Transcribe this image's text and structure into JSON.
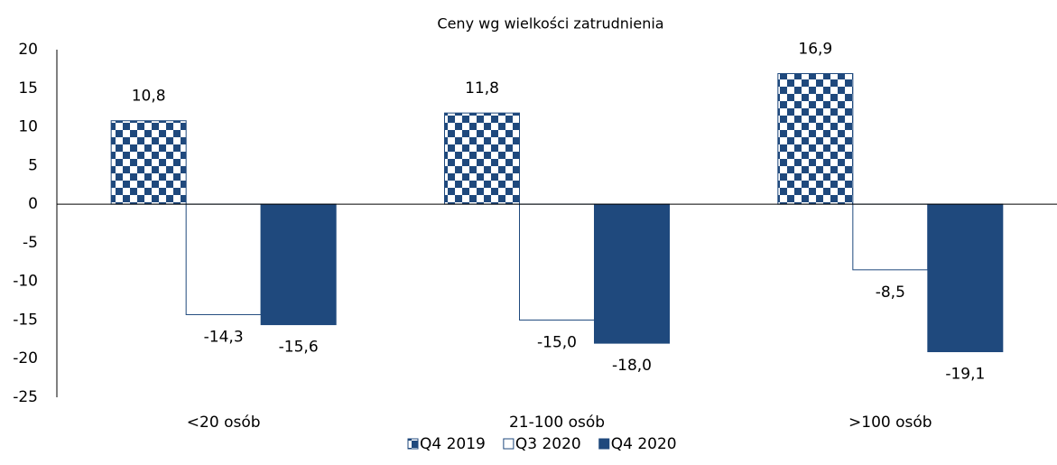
{
  "chart_data": {
    "type": "bar",
    "title": "Ceny wg wielkości zatrudnienia",
    "categories": [
      "<20 osób",
      "21-100 osób",
      ">100 osób"
    ],
    "series": [
      {
        "name": "Q4 2019",
        "color": "#1f497d",
        "pattern": "checker",
        "values": [
          10.8,
          11.8,
          16.9
        ],
        "value_labels": [
          "10,8",
          "11,8",
          "16,9"
        ]
      },
      {
        "name": "Q3 2020",
        "color": "#ffffff",
        "values": [
          -14.3,
          -15.0,
          -8.5
        ],
        "value_labels": [
          "-14,3",
          "-15,0",
          "-8,5"
        ]
      },
      {
        "name": "Q4 2020",
        "color": "#1f497d",
        "values": [
          -15.6,
          -18.0,
          -19.1
        ],
        "value_labels": [
          "-15,6",
          "-18,0",
          "-19,1"
        ]
      }
    ],
    "ylim": [
      -25,
      20
    ],
    "yticks": [
      20,
      15,
      10,
      5,
      0,
      -5,
      -10,
      -15,
      -20,
      -25
    ],
    "grid": false,
    "legend": "bottom"
  }
}
